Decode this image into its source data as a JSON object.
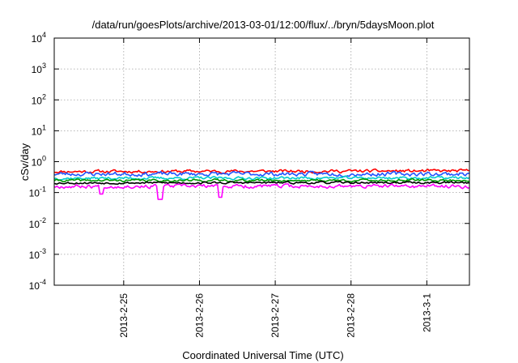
{
  "chart_data": {
    "type": "line",
    "title": "/data/run/goesPlots/archive/2013-03-01/12:00/flux/../bryn/5daysMoon.plot",
    "xlabel": "Coordinated Universal Time (UTC)",
    "ylabel": "cSv/day",
    "yscale": "log",
    "ylim": [
      0.0001,
      10000
    ],
    "xlim": [
      "2013-02-24 02:00",
      "2013-03-01 13:30"
    ],
    "grid": true,
    "x_ticks": [
      "2013-2-25",
      "2013-2-26",
      "2013-2-27",
      "2013-2-28",
      "2013-3-1"
    ],
    "y_ticks": [
      {
        "base": "10",
        "exp": "4"
      },
      {
        "base": "10",
        "exp": "3"
      },
      {
        "base": "10",
        "exp": "2"
      },
      {
        "base": "10",
        "exp": "1"
      },
      {
        "base": "10",
        "exp": "0"
      },
      {
        "base": "10",
        "exp": "-1"
      },
      {
        "base": "10",
        "exp": "-2"
      },
      {
        "base": "10",
        "exp": "-3"
      },
      {
        "base": "10",
        "exp": "-4"
      }
    ],
    "series": [
      {
        "color": "#ff0000",
        "start": 0.48,
        "end": 0.5,
        "noise": 0.045,
        "seed": 11
      },
      {
        "color": "#2255ff",
        "start": 0.4,
        "end": 0.4,
        "noise": 0.06,
        "seed": 23
      },
      {
        "color": "#00cccc",
        "start": 0.29,
        "end": 0.3,
        "noise": 0.04,
        "seed": 37
      },
      {
        "color": "#009900",
        "start": 0.245,
        "end": 0.25,
        "noise": 0.035,
        "seed": 41
      },
      {
        "color": "#000000",
        "start": 0.205,
        "end": 0.21,
        "noise": 0.03,
        "seed": 53
      },
      {
        "color": "#ff00ff",
        "start": 0.16,
        "end": 0.16,
        "noise": 0.055,
        "seed": 67
      }
    ],
    "dips": [
      {
        "time": "2013-02-25 11:30",
        "value": 0.06,
        "series": "#ff00ff"
      },
      {
        "time": "2013-02-26 06:30",
        "value": 0.07,
        "series": "#ff00ff"
      },
      {
        "time": "2013-02-24 17:00",
        "value": 0.09,
        "series": "#ff00ff"
      }
    ],
    "colors": {
      "frame": "#000000",
      "grid": "#a0a0a0"
    }
  }
}
